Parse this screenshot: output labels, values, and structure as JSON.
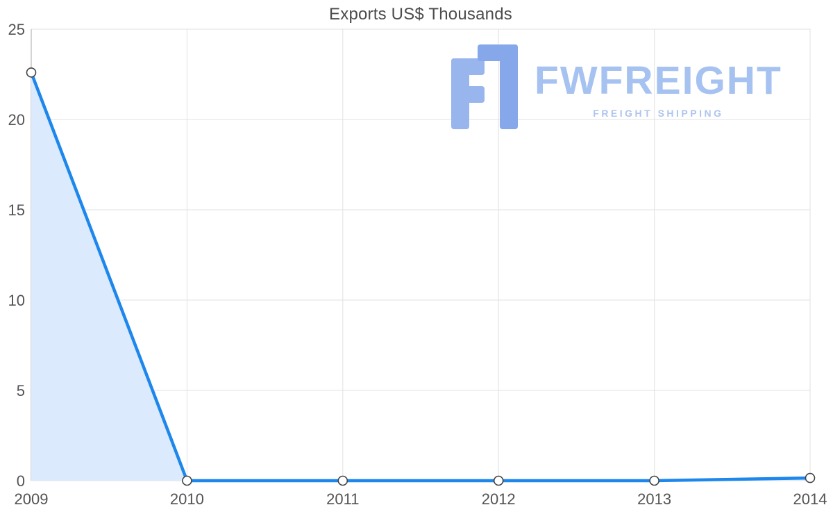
{
  "title": "Exports US$ Thousands",
  "watermark": {
    "brand": "FWFREIGHT",
    "tagline": "FREIGHT SHIPPING",
    "text_color": "#a6c2f0",
    "tagline_color": "#aec5ef",
    "glyph_color_left": "#98b5ee",
    "glyph_color_right": "#86a8ea"
  },
  "chart_data": {
    "type": "area",
    "title": "Exports US$ Thousands",
    "xlabel": "",
    "ylabel": "",
    "categories": [
      "2009",
      "2010",
      "2011",
      "2012",
      "2013",
      "2014"
    ],
    "values": [
      22.6,
      0,
      0,
      0,
      0,
      0.15
    ],
    "ylim": [
      0,
      25
    ],
    "yticks": [
      0,
      5,
      10,
      15,
      20,
      25
    ],
    "grid": true,
    "legend_position": "none",
    "colors": {
      "line": "#1d87ec",
      "fill": "#dbeafc",
      "marker_fill": "#ffffff",
      "marker_stroke": "#424242",
      "grid": "#e2e2e2",
      "axis": "#c6c6c6",
      "tick_text": "#535353",
      "title_text": "#4c4c4c"
    }
  }
}
